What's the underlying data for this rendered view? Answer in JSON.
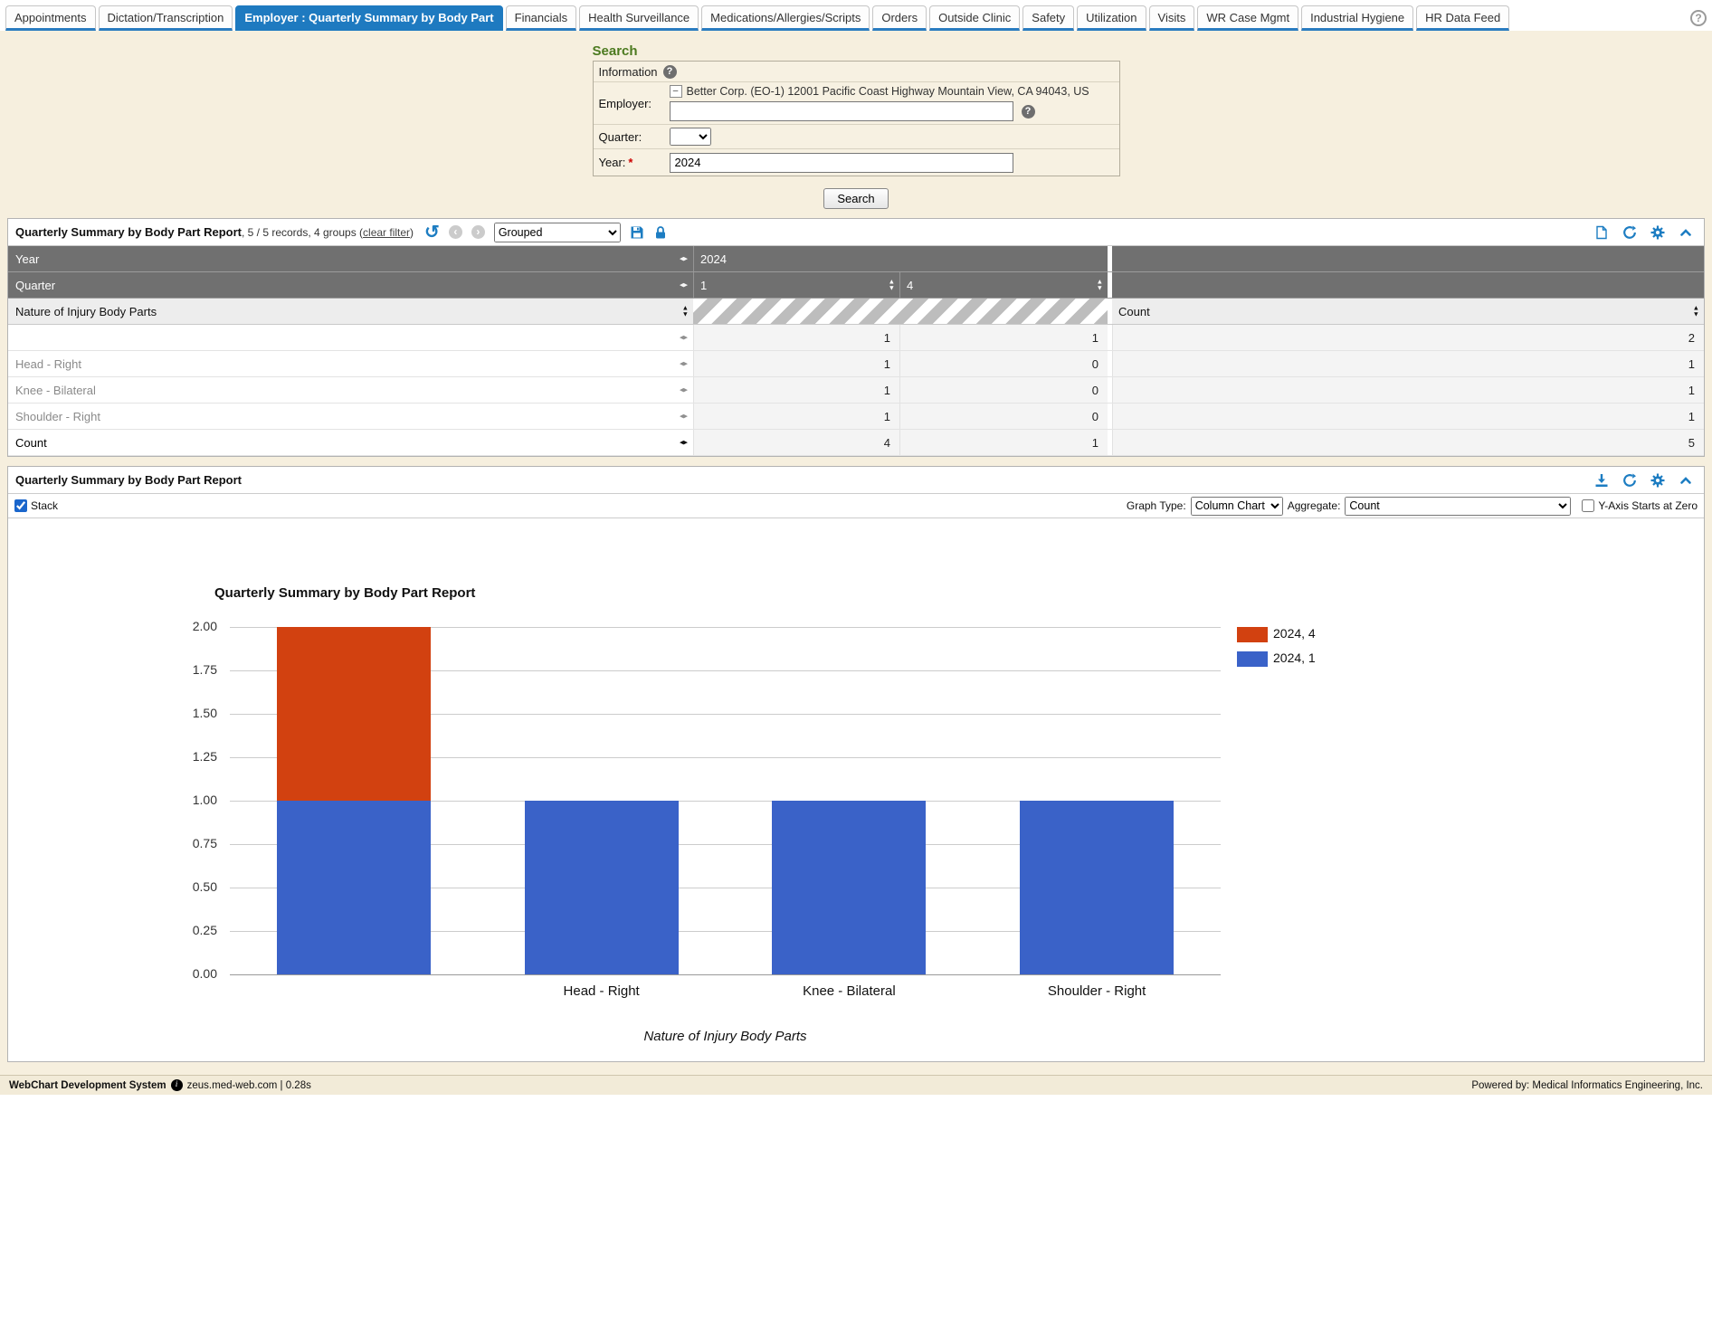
{
  "icons": {
    "help": "?",
    "collapse": "–",
    "undo": "↺",
    "back": "‹",
    "forward": "›",
    "resize": "◂▸",
    "sort_up": "▲",
    "sort_down": "▼",
    "info": "i"
  },
  "tabs": {
    "items": [
      {
        "label": "Appointments",
        "active": false
      },
      {
        "label": "Dictation/Transcription",
        "active": false
      },
      {
        "label": "Employer : Quarterly Summary by Body Part",
        "active": true
      },
      {
        "label": "Financials",
        "active": false
      },
      {
        "label": "Health Surveillance",
        "active": false
      },
      {
        "label": "Medications/Allergies/Scripts",
        "active": false
      },
      {
        "label": "Orders",
        "active": false
      },
      {
        "label": "Outside Clinic",
        "active": false
      },
      {
        "label": "Safety",
        "active": false
      },
      {
        "label": "Utilization",
        "active": false
      },
      {
        "label": "Visits",
        "active": false
      },
      {
        "label": "WR Case Mgmt",
        "active": false
      },
      {
        "label": "Industrial Hygiene",
        "active": false
      },
      {
        "label": "HR Data Feed",
        "active": false
      }
    ]
  },
  "search": {
    "title": "Search",
    "information_label": "Information",
    "employer_label": "Employer:",
    "employer_value": "Better Corp. (EO-1) 12001 Pacific Coast Highway Mountain View, CA 94043, US",
    "employer_input_value": "",
    "quarter_label": "Quarter:",
    "quarter_value": "",
    "year_label": "Year:",
    "year_required_mark": "*",
    "year_value": "2024",
    "search_button": "Search"
  },
  "report": {
    "title": "Quarterly Summary by Body Part Report",
    "meta_prefix": ", 5 / 5 records, 4 groups (",
    "clear_filter": "clear filter",
    "meta_suffix": ")",
    "grouped_option": "Grouped",
    "table": {
      "year_header": "Year",
      "year_value": "2024",
      "quarter_header": "Quarter",
      "quarter_1": "1",
      "quarter_4": "4",
      "body_parts_header": "Nature of Injury Body Parts",
      "count_header": "Count",
      "rows": [
        {
          "label": "",
          "q1": "1",
          "q4": "1",
          "count": "2"
        },
        {
          "label": "Head - Right",
          "q1": "1",
          "q4": "0",
          "count": "1"
        },
        {
          "label": "Knee - Bilateral",
          "q1": "1",
          "q4": "0",
          "count": "1"
        },
        {
          "label": "Shoulder - Right",
          "q1": "1",
          "q4": "0",
          "count": "1"
        }
      ],
      "total_row": {
        "label": "Count",
        "q1": "4",
        "q4": "1",
        "count": "5"
      }
    }
  },
  "chart_panel": {
    "title": "Quarterly Summary by Body Part Report",
    "stack_label": "Stack",
    "stack_checked": true,
    "graph_type_label": "Graph Type:",
    "graph_type_value": "Column Chart",
    "aggregate_label": "Aggregate:",
    "aggregate_value": "Count",
    "y_axis_zero_label": "Y-Axis Starts at Zero",
    "y_axis_zero_checked": false
  },
  "chart_data": {
    "type": "bar",
    "stacked": true,
    "title": "Quarterly Summary by Body Part Report",
    "categories": [
      "",
      "Head - Right",
      "Knee - Bilateral",
      "Shoulder - Right"
    ],
    "series": [
      {
        "name": "2024, 1",
        "color": "#3a62c8",
        "values": [
          1,
          1,
          1,
          1
        ]
      },
      {
        "name": "2024, 4",
        "color": "#d24110",
        "values": [
          1,
          0,
          0,
          0
        ]
      }
    ],
    "legend": [
      {
        "label": "2024, 4",
        "color": "#d24110"
      },
      {
        "label": "2024, 1",
        "color": "#3a62c8"
      }
    ],
    "xlabel": "Nature of Injury Body Parts",
    "ylabel": "",
    "ylim": [
      0,
      2
    ],
    "yticks": [
      0,
      0.25,
      0.5,
      0.75,
      1,
      1.25,
      1.5,
      1.75,
      2
    ],
    "grid": true,
    "legend_position": "right"
  },
  "footer": {
    "app_name": "WebChart Development System",
    "host": "zeus.med-web.com | 0.28s",
    "powered_by": "Powered by: Medical Informatics Engineering, Inc."
  },
  "colors": {
    "accent_blue": "#1d7dc2",
    "active_tab": "#1e7ac0",
    "bar_blue": "#3a62c8",
    "bar_red": "#d24110",
    "header_gray": "#707070",
    "search_green": "#4c7a1f",
    "page_beige": "#f6efde"
  }
}
